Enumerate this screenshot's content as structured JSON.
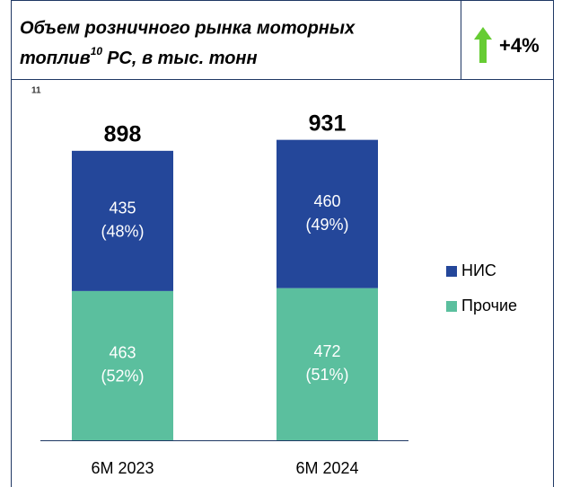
{
  "chart_data": {
    "type": "stacked_bar",
    "title_lines": [
      "Объем розничного рынка моторных",
      "топлив"
    ],
    "title_footnote": "10",
    "title_rest": "РС, в тыс. тонн",
    "change_label": "+4%",
    "footnote": "11",
    "categories": [
      "6M 2023",
      "6M 2024"
    ],
    "totals": [
      898,
      931
    ],
    "series": [
      {
        "name": "Прочие",
        "color": "#5bbf9e",
        "values": [
          463,
          472
        ],
        "shares": [
          52,
          51
        ],
        "share_labels": [
          "(52%)",
          "(51%)"
        ]
      },
      {
        "name": "НИС",
        "color": "#24479a",
        "values": [
          435,
          460
        ],
        "shares": [
          48,
          49
        ],
        "share_labels": [
          "(48%)",
          "(49%)"
        ]
      }
    ]
  }
}
